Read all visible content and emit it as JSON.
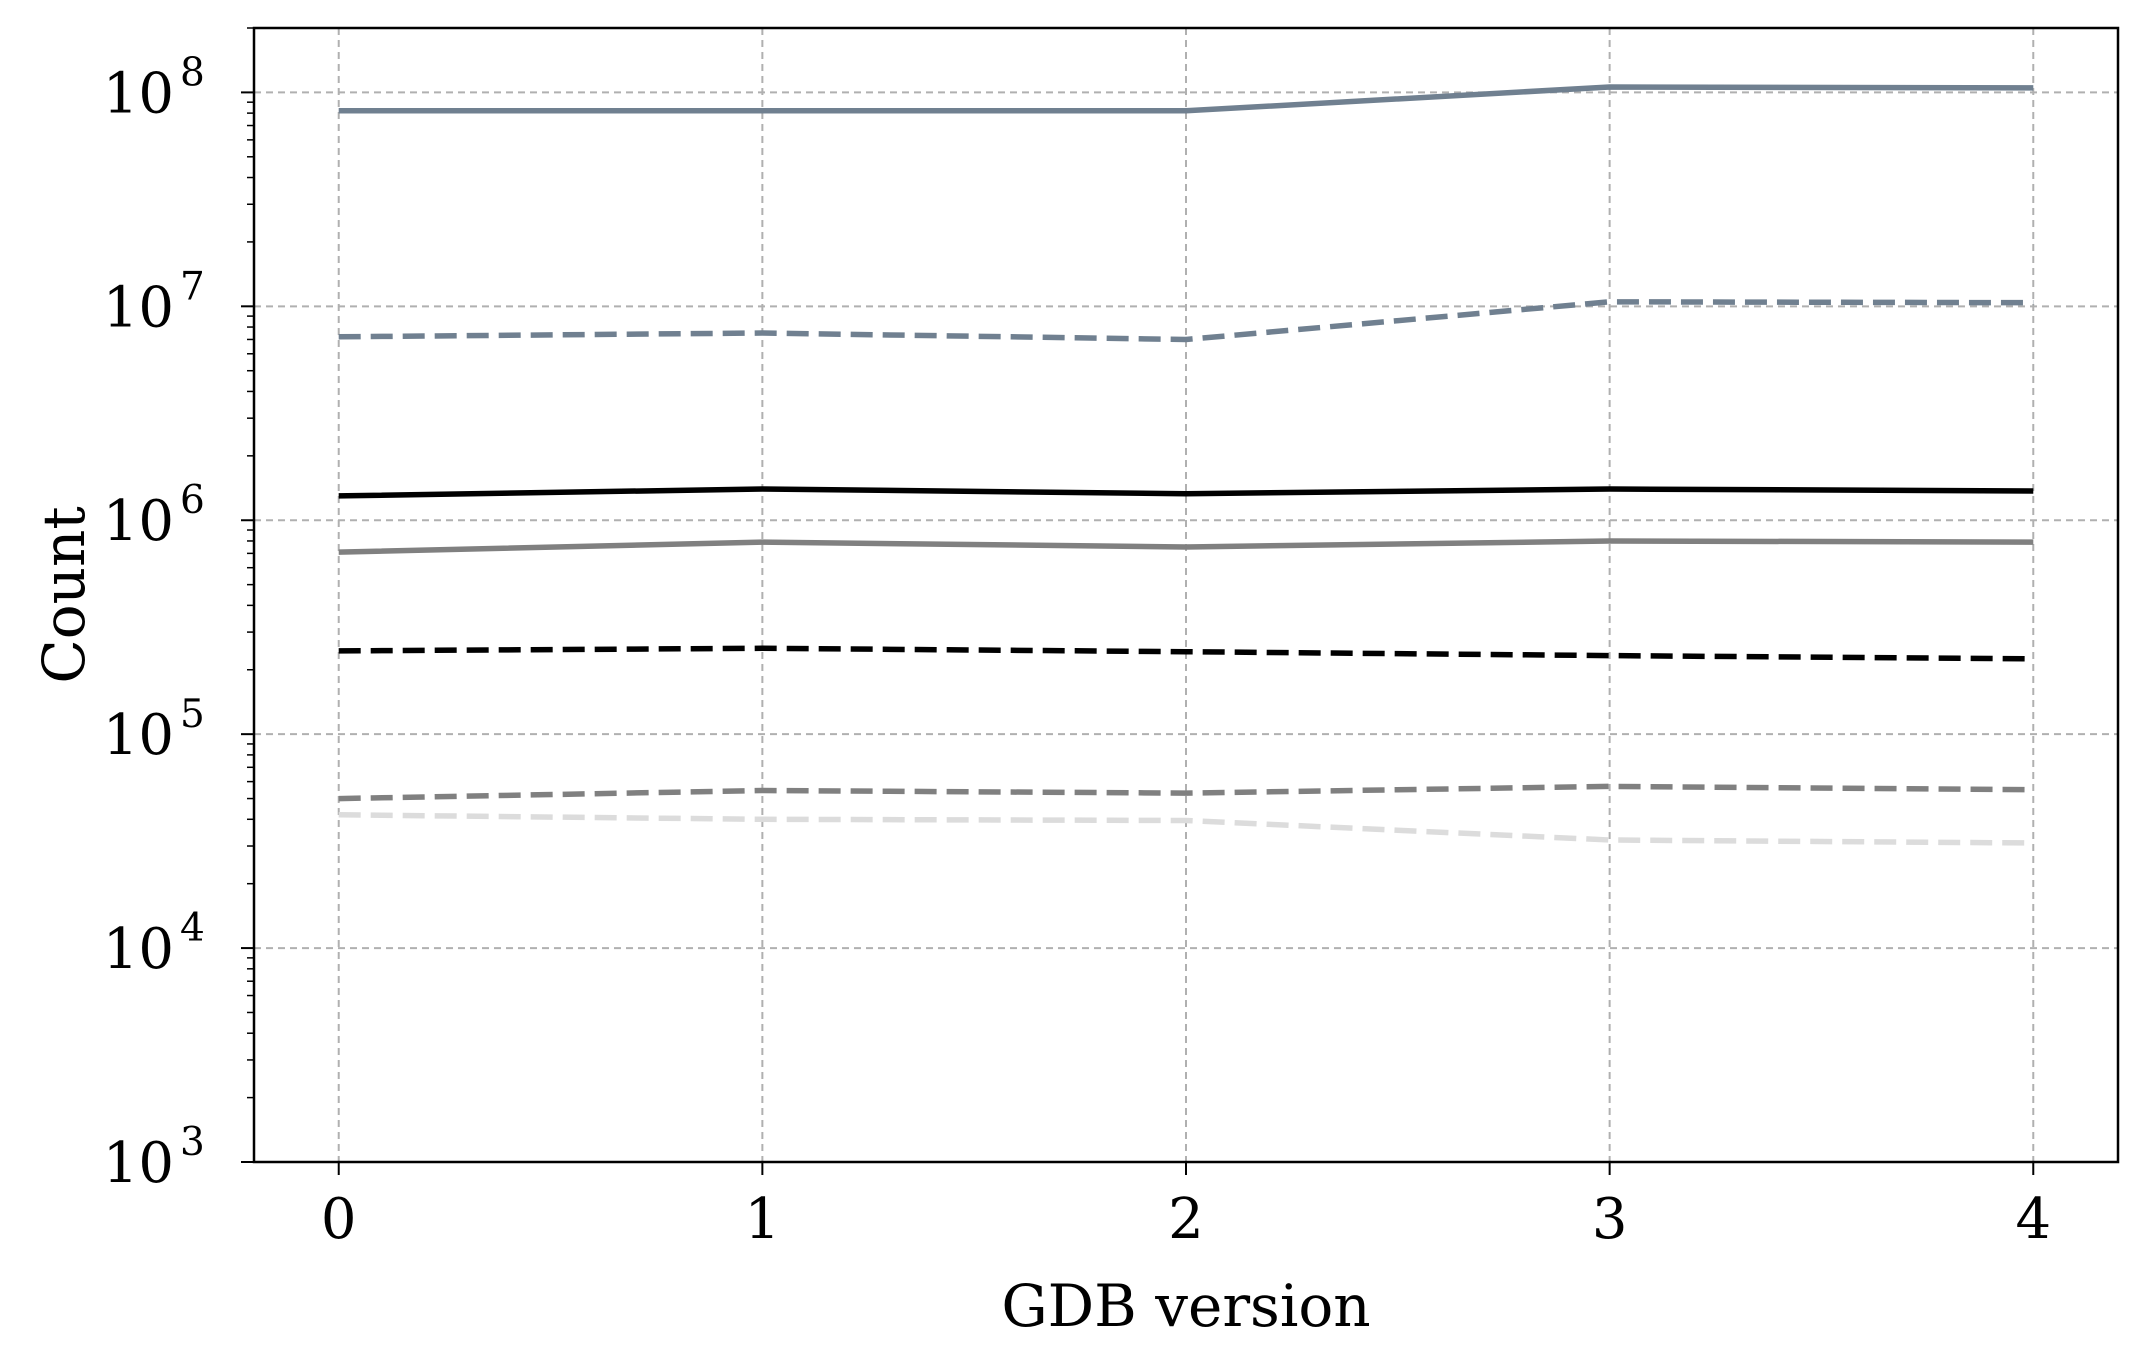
{
  "chart_data": {
    "type": "line",
    "xlabel": "GDB version",
    "ylabel": "Count",
    "yscale": "log",
    "x": [
      0,
      1,
      2,
      3,
      4
    ],
    "xlim": [
      -0.2,
      4.2
    ],
    "ylim": [
      1000,
      200000000
    ],
    "x_ticks": [
      "0",
      "1",
      "2",
      "3",
      "4"
    ],
    "y_ticks": [
      {
        "value": 1000,
        "base": "10",
        "exp": "3"
      },
      {
        "value": 10000,
        "base": "10",
        "exp": "4"
      },
      {
        "value": 100000,
        "base": "10",
        "exp": "5"
      },
      {
        "value": 1000000,
        "base": "10",
        "exp": "6"
      },
      {
        "value": 10000000,
        "base": "10",
        "exp": "7"
      },
      {
        "value": 100000000,
        "base": "10",
        "exp": "8"
      }
    ],
    "grid": true,
    "legend": false,
    "series": [
      {
        "color": "#708090",
        "dash": "solid",
        "values": [
          82000000,
          82000000,
          82000000,
          106000000,
          105000000
        ]
      },
      {
        "color": "#708090",
        "dash": "dashed",
        "values": [
          7200000,
          7500000,
          7000000,
          10500000,
          10400000
        ]
      },
      {
        "color": "#000000",
        "dash": "solid",
        "values": [
          1300000,
          1400000,
          1330000,
          1400000,
          1370000
        ]
      },
      {
        "color": "#808080",
        "dash": "solid",
        "values": [
          710000,
          790000,
          750000,
          800000,
          790000
        ]
      },
      {
        "color": "#000000",
        "dash": "dashed",
        "values": [
          245000,
          252000,
          243000,
          233000,
          225000
        ]
      },
      {
        "color": "#808080",
        "dash": "dashed",
        "values": [
          50000,
          54500,
          53000,
          57000,
          55000
        ]
      },
      {
        "color": "#dcdcdc",
        "dash": "dashed",
        "values": [
          42000,
          40000,
          39500,
          32000,
          31000
        ]
      }
    ]
  }
}
